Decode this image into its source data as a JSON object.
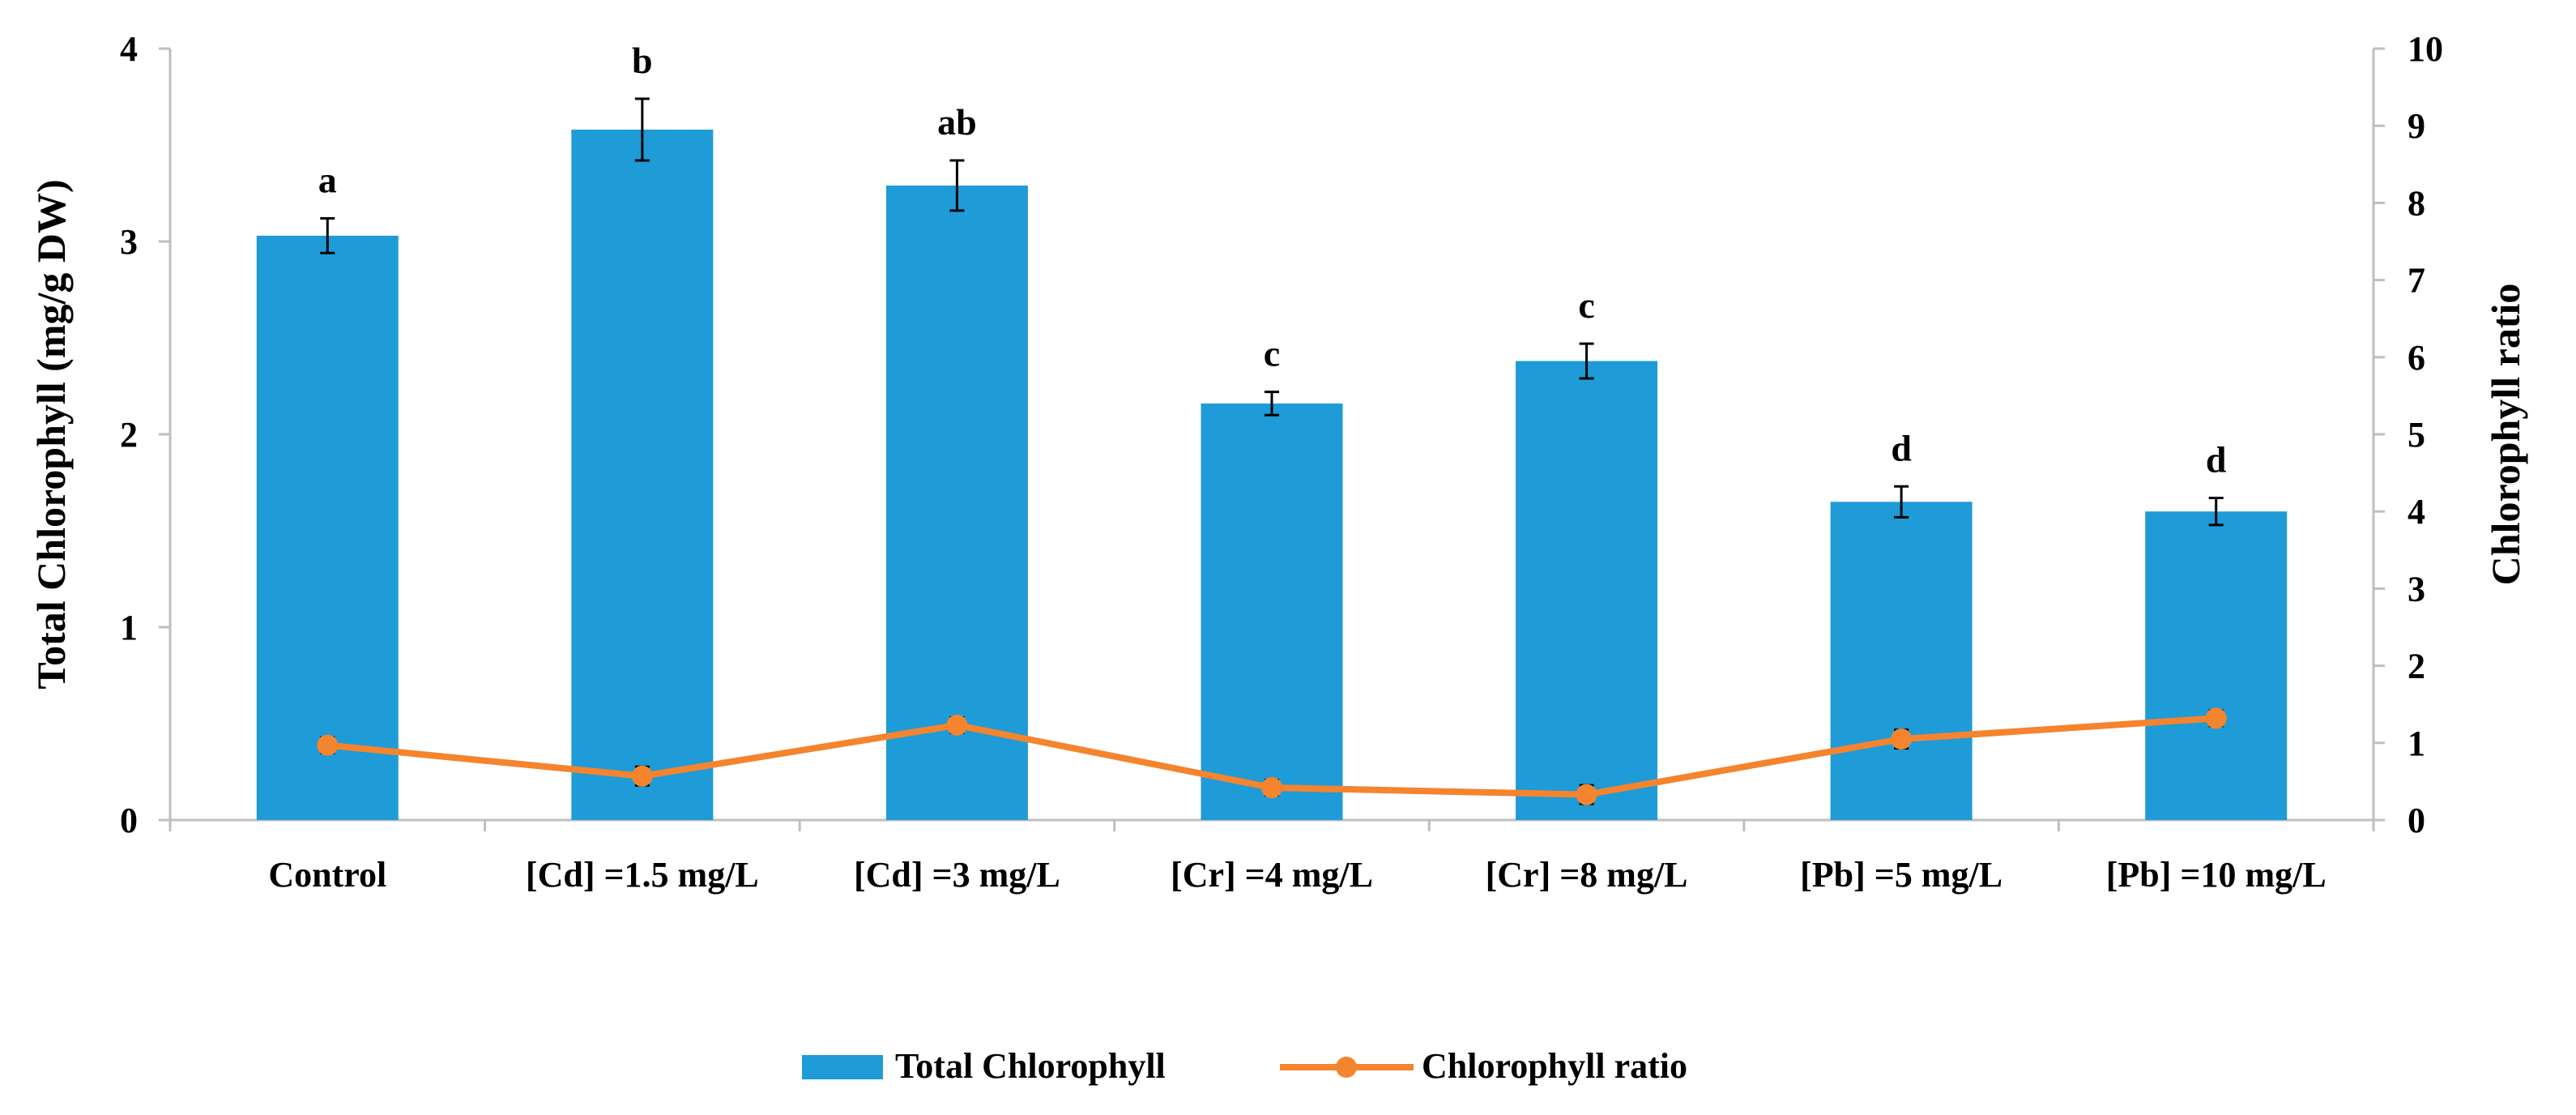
{
  "chart_data": {
    "type": "bar",
    "categories": [
      "Control",
      "[Cd] =1.5 mg/L",
      "[Cd] =3 mg/L",
      "[Cr] =4 mg/L",
      "[Cr] =8 mg/L",
      "[Pb] =5 mg/L",
      "[Pb] =10 mg/L"
    ],
    "series": [
      {
        "name": "Total Chlorophyll",
        "type": "bar",
        "axis": "left",
        "color": "#1f9bd7",
        "values": [
          3.03,
          3.58,
          3.29,
          2.16,
          2.38,
          1.65,
          1.6
        ],
        "errors": [
          0.09,
          0.16,
          0.13,
          0.06,
          0.09,
          0.08,
          0.07
        ],
        "significance": [
          "a",
          "b",
          "ab",
          "c",
          "c",
          "d",
          "d"
        ]
      },
      {
        "name": "Chlorophyll ratio",
        "type": "line",
        "axis": "right",
        "color": "#f4842e",
        "values": [
          0.97,
          0.57,
          1.23,
          0.42,
          0.33,
          1.05,
          1.32
        ],
        "errors": [
          0.1,
          0.12,
          0.1,
          0.1,
          0.12,
          0.12,
          0.1
        ]
      }
    ],
    "ylabel": "Total Chlorophyll  (mg/g DW)",
    "y2label": "Chlorophyll  ratio",
    "xlabel": "",
    "ylim": [
      0,
      4
    ],
    "y2lim": [
      0,
      10
    ],
    "yticks": [
      "0",
      "1",
      "2",
      "3",
      "4"
    ],
    "y2ticks": [
      "0",
      "1",
      "2",
      "3",
      "4",
      "5",
      "6",
      "7",
      "8",
      "9",
      "10"
    ],
    "grid": false,
    "legend": {
      "position": "bottom",
      "entries": [
        "Total Chlorophyll",
        "Chlorophyll ratio"
      ]
    }
  },
  "colors": {
    "bar": "#1f9bd7",
    "line": "#f4842e",
    "axis": "#bfbfbf",
    "text": "#000000"
  }
}
